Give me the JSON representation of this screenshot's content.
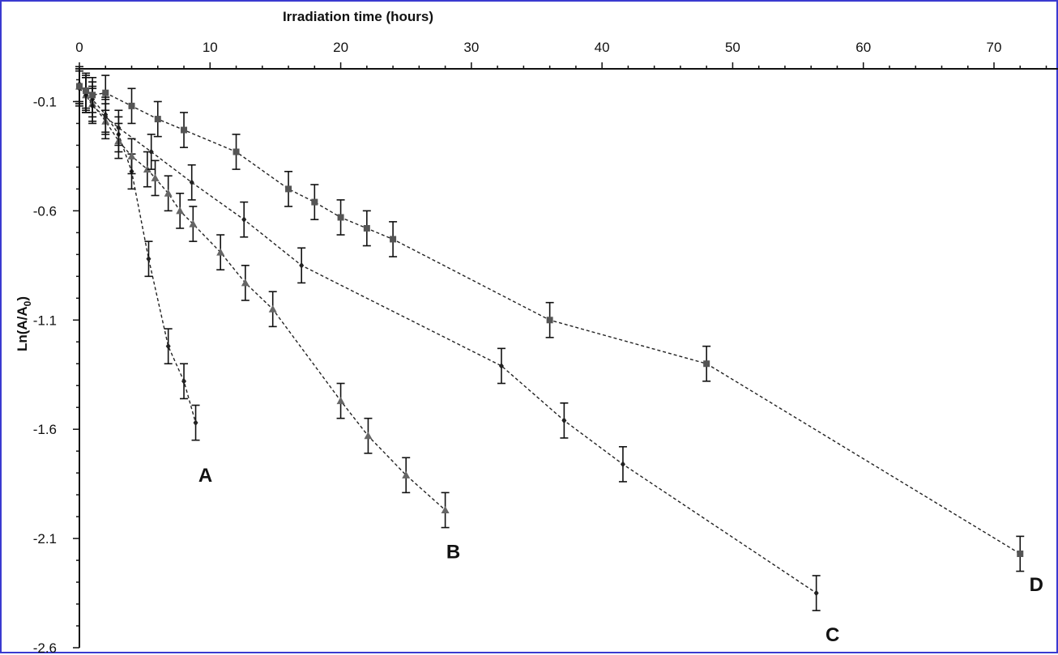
{
  "chart_data": {
    "type": "scatter",
    "title": "",
    "xlabel": "Irradiation time (hours)",
    "ylabel": "Ln(A/A0)",
    "ylabel_main": "Ln(A/A",
    "ylabel_sub": "0",
    "ylabel_close": ")",
    "xlim": [
      0,
      75
    ],
    "ylim": [
      -2.6,
      0.05
    ],
    "x_ticks": [
      0,
      10,
      20,
      30,
      40,
      50,
      60,
      70
    ],
    "y_ticks": [
      -0.1,
      -0.6,
      -1.1,
      -1.6,
      -2.1,
      -2.6
    ],
    "x_tick_labels": [
      "0",
      "10",
      "20",
      "30",
      "40",
      "50",
      "60",
      "70"
    ],
    "y_tick_labels": [
      "-0.1",
      "-0.6",
      "-1.1",
      "-1.6",
      "-2.1",
      "-2.6"
    ],
    "x_axis_position": "top",
    "grid": false,
    "error_bar": 0.08,
    "series": [
      {
        "name": "A",
        "marker": "diamond",
        "x": [
          0,
          0.5,
          1,
          2,
          3,
          4,
          5.3,
          6.8,
          8,
          8.9
        ],
        "y": [
          -0.02,
          -0.06,
          -0.09,
          -0.16,
          -0.25,
          -0.42,
          -0.82,
          -1.22,
          -1.38,
          -1.57
        ]
      },
      {
        "name": "B",
        "marker": "triangle",
        "x": [
          0,
          0.5,
          1,
          2,
          3,
          4,
          5.2,
          5.8,
          6.8,
          7.7,
          8.7,
          10.8,
          12.7,
          14.8,
          20,
          22.1,
          25,
          28
        ],
        "y": [
          -0.03,
          -0.07,
          -0.11,
          -0.19,
          -0.28,
          -0.35,
          -0.41,
          -0.45,
          -0.52,
          -0.6,
          -0.66,
          -0.79,
          -0.93,
          -1.05,
          -1.47,
          -1.63,
          -1.81,
          -1.97
        ]
      },
      {
        "name": "C",
        "marker": "diamond",
        "x": [
          0,
          0.5,
          1,
          2,
          3,
          5.5,
          8.6,
          12.6,
          17,
          32.3,
          37.1,
          41.6,
          56.4
        ],
        "y": [
          -0.04,
          -0.07,
          -0.12,
          -0.17,
          -0.22,
          -0.33,
          -0.47,
          -0.64,
          -0.85,
          -1.31,
          -1.56,
          -1.76,
          -2.35
        ]
      },
      {
        "name": "D",
        "marker": "square",
        "x": [
          0,
          0.5,
          1,
          2,
          4,
          6,
          8,
          12,
          16,
          18,
          20,
          22,
          24,
          36,
          48,
          72
        ],
        "y": [
          -0.03,
          -0.05,
          -0.07,
          -0.06,
          -0.12,
          -0.18,
          -0.23,
          -0.33,
          -0.5,
          -0.56,
          -0.63,
          -0.68,
          -0.73,
          -1.1,
          -1.3,
          -2.17
        ]
      }
    ]
  }
}
